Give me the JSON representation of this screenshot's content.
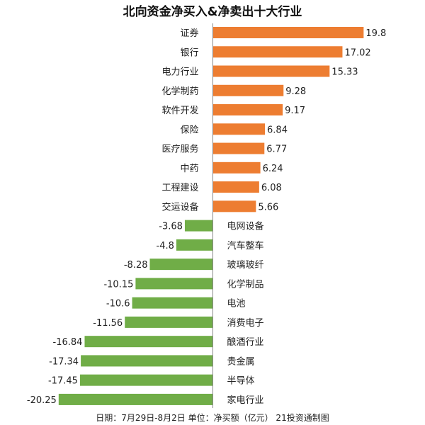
{
  "chart_data": {
    "type": "bar",
    "orientation": "horizontal",
    "title": "北向资金净买入&净卖出十大行业",
    "footer": "日期：7月29日-8月2日 单位：净买额（亿元） 21投资通制图",
    "categories": [
      "证券",
      "银行",
      "电力行业",
      "化学制药",
      "软件开发",
      "保险",
      "医疗服务",
      "中药",
      "工程建设",
      "交运设备",
      "电网设备",
      "汽车整车",
      "玻璃玻纤",
      "化学制品",
      "电池",
      "消费电子",
      "酿酒行业",
      "贵金属",
      "半导体",
      "家电行业"
    ],
    "values": [
      19.8,
      17.02,
      15.33,
      9.28,
      9.17,
      6.84,
      6.77,
      6.24,
      6.08,
      5.66,
      -3.68,
      -4.8,
      -8.28,
      -10.15,
      -10.6,
      -11.56,
      -16.84,
      -17.34,
      -17.45,
      -20.25
    ],
    "value_labels": [
      "19.8",
      "17.02",
      "15.33",
      "9.28",
      "9.17",
      "6.84",
      "6.77",
      "6.24",
      "6.08",
      "5.66",
      "-3.68",
      "-4.8",
      "-8.28",
      "-10.15",
      "-10.6",
      "-11.56",
      "-16.84",
      "-17.34",
      "-17.45",
      "-20.25"
    ],
    "colors": {
      "positive": "#ED7D31",
      "negative": "#70AD47",
      "axis": "#888888"
    },
    "xlabel": "",
    "ylabel": "",
    "grid": false,
    "legend": "none"
  }
}
